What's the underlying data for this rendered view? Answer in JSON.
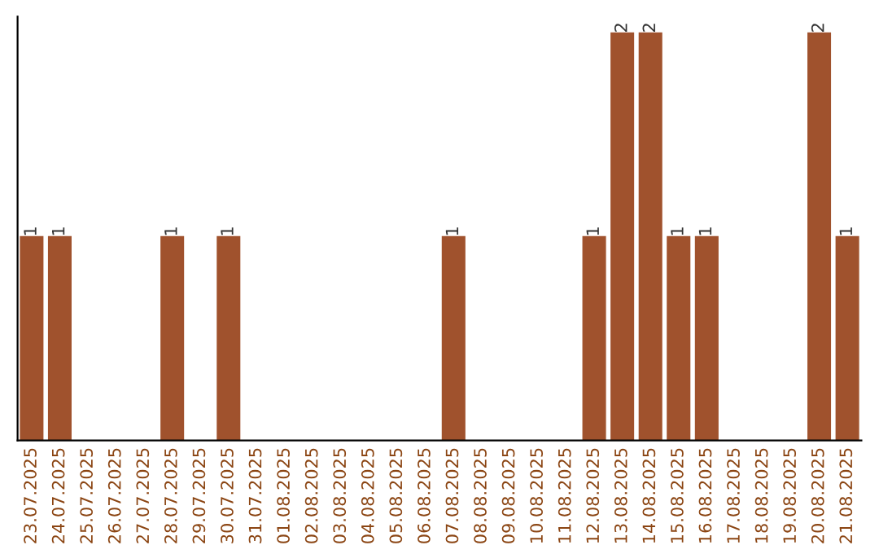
{
  "chart_data": {
    "type": "bar",
    "categories": [
      "23.07.2025",
      "24.07.2025",
      "25.07.2025",
      "26.07.2025",
      "27.07.2025",
      "28.07.2025",
      "29.07.2025",
      "30.07.2025",
      "31.07.2025",
      "01.08.2025",
      "02.08.2025",
      "03.08.2025",
      "04.08.2025",
      "05.08.2025",
      "06.08.2025",
      "07.08.2025",
      "08.08.2025",
      "09.08.2025",
      "10.08.2025",
      "11.08.2025",
      "12.08.2025",
      "13.08.2025",
      "14.08.2025",
      "15.08.2025",
      "16.08.2025",
      "17.08.2025",
      "18.08.2025",
      "19.08.2025",
      "20.08.2025",
      "21.08.2025"
    ],
    "values": [
      1,
      1,
      0,
      0,
      0,
      1,
      0,
      1,
      0,
      0,
      0,
      0,
      0,
      0,
      0,
      1,
      0,
      0,
      0,
      0,
      1,
      2,
      2,
      1,
      1,
      0,
      0,
      0,
      2,
      1
    ],
    "value_labels": [
      "1",
      "1",
      null,
      null,
      null,
      "1",
      null,
      "1",
      null,
      null,
      null,
      null,
      null,
      null,
      null,
      "1",
      null,
      null,
      null,
      null,
      "1",
      "2",
      "2",
      "1",
      "1",
      null,
      null,
      null,
      "2",
      "1"
    ],
    "color": "#a0522d",
    "tick_labels": "x",
    "grid": false,
    "legend": false
  }
}
